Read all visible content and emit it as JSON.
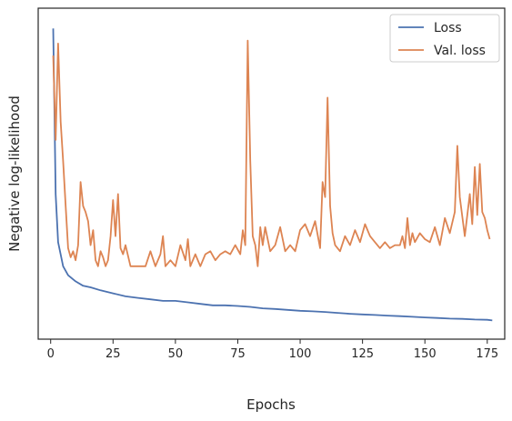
{
  "chart_data": {
    "type": "line",
    "title": "",
    "xlabel": "Epochs",
    "ylabel": "Negative log-likelihood",
    "xlim": [
      -5,
      182
    ],
    "ylim": [
      0,
      1
    ],
    "xticks": [
      0,
      25,
      50,
      75,
      100,
      125,
      150,
      175
    ],
    "yticks_visible": false,
    "grid": false,
    "legend_position": "top-right",
    "series": [
      {
        "name": "Loss",
        "color": "#4c72b0",
        "x": [
          1,
          2,
          3,
          5,
          7,
          10,
          13,
          16,
          20,
          25,
          30,
          35,
          40,
          45,
          50,
          55,
          60,
          65,
          70,
          75,
          80,
          85,
          90,
          95,
          100,
          105,
          110,
          115,
          120,
          125,
          130,
          135,
          140,
          145,
          150,
          155,
          160,
          165,
          170,
          175,
          177
        ],
        "y": [
          0.99,
          0.44,
          0.28,
          0.2,
          0.17,
          0.15,
          0.135,
          0.13,
          0.12,
          0.11,
          0.1,
          0.095,
          0.09,
          0.085,
          0.085,
          0.08,
          0.075,
          0.07,
          0.07,
          0.068,
          0.065,
          0.06,
          0.058,
          0.055,
          0.052,
          0.05,
          0.048,
          0.045,
          0.042,
          0.04,
          0.038,
          0.036,
          0.034,
          0.032,
          0.03,
          0.028,
          0.026,
          0.025,
          0.023,
          0.022,
          0.02
        ]
      },
      {
        "name": "Val. loss",
        "color": "#dd8452",
        "x": [
          1,
          2,
          3,
          4,
          5,
          6,
          7,
          8,
          9,
          10,
          11,
          12,
          13,
          14,
          15,
          16,
          17,
          18,
          19,
          20,
          21,
          22,
          23,
          24,
          25,
          26,
          27,
          28,
          29,
          30,
          32,
          34,
          36,
          38,
          40,
          42,
          44,
          45,
          46,
          48,
          50,
          52,
          54,
          55,
          56,
          58,
          60,
          62,
          64,
          66,
          68,
          70,
          72,
          74,
          76,
          77,
          78,
          79,
          80,
          81,
          82,
          83,
          84,
          85,
          86,
          88,
          90,
          92,
          94,
          96,
          98,
          100,
          102,
          104,
          106,
          108,
          109,
          110,
          111,
          112,
          113,
          114,
          116,
          118,
          120,
          122,
          124,
          126,
          128,
          130,
          132,
          134,
          136,
          138,
          140,
          141,
          142,
          143,
          144,
          145,
          146,
          148,
          150,
          152,
          154,
          156,
          158,
          160,
          162,
          163,
          164,
          166,
          168,
          169,
          170,
          171,
          172,
          173,
          174,
          175,
          176
        ],
        "y": [
          0.9,
          0.62,
          0.94,
          0.68,
          0.55,
          0.4,
          0.26,
          0.23,
          0.25,
          0.22,
          0.27,
          0.48,
          0.4,
          0.38,
          0.35,
          0.27,
          0.32,
          0.22,
          0.2,
          0.25,
          0.23,
          0.2,
          0.22,
          0.3,
          0.42,
          0.3,
          0.44,
          0.26,
          0.24,
          0.27,
          0.2,
          0.2,
          0.2,
          0.2,
          0.25,
          0.2,
          0.24,
          0.3,
          0.2,
          0.22,
          0.2,
          0.27,
          0.22,
          0.29,
          0.2,
          0.24,
          0.2,
          0.24,
          0.25,
          0.22,
          0.24,
          0.25,
          0.24,
          0.27,
          0.24,
          0.32,
          0.27,
          0.95,
          0.55,
          0.3,
          0.27,
          0.2,
          0.33,
          0.27,
          0.33,
          0.25,
          0.27,
          0.33,
          0.25,
          0.27,
          0.25,
          0.32,
          0.34,
          0.3,
          0.35,
          0.26,
          0.48,
          0.43,
          0.76,
          0.4,
          0.31,
          0.27,
          0.25,
          0.3,
          0.27,
          0.32,
          0.28,
          0.34,
          0.3,
          0.28,
          0.26,
          0.28,
          0.26,
          0.27,
          0.27,
          0.3,
          0.26,
          0.36,
          0.27,
          0.31,
          0.28,
          0.31,
          0.29,
          0.28,
          0.33,
          0.27,
          0.36,
          0.31,
          0.38,
          0.6,
          0.43,
          0.3,
          0.44,
          0.34,
          0.53,
          0.37,
          0.54,
          0.38,
          0.36,
          0.32,
          0.29
        ]
      }
    ]
  }
}
